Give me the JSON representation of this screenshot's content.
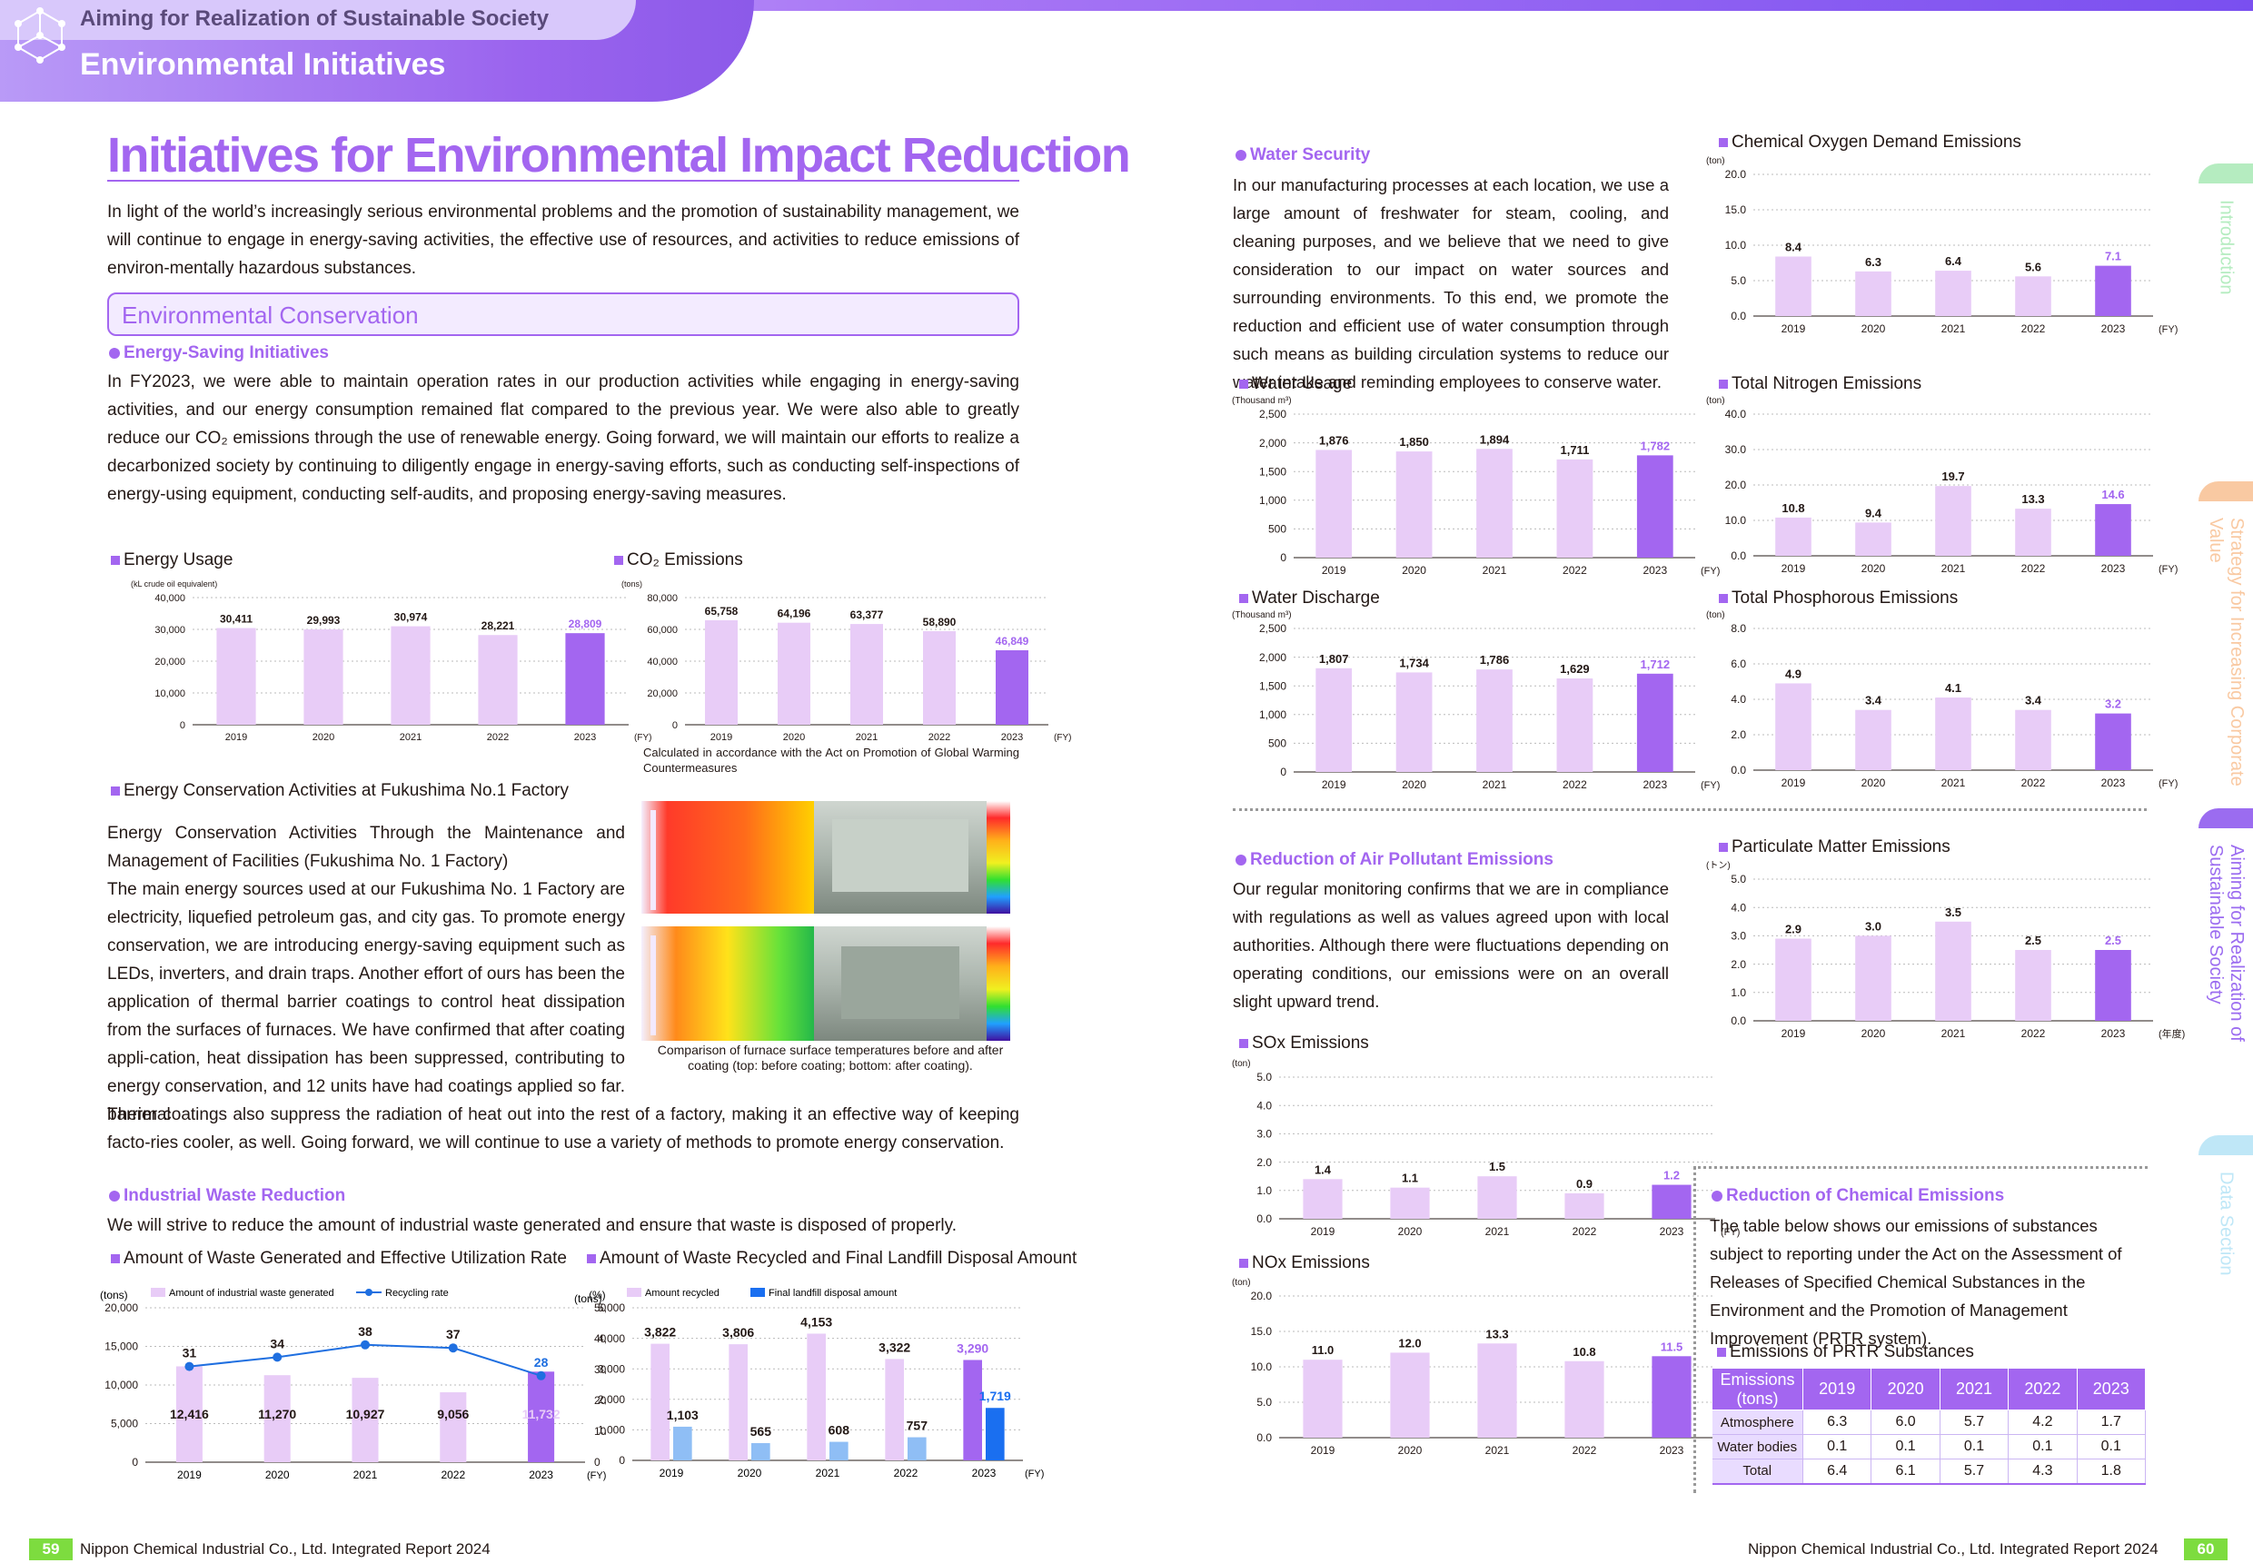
{
  "header": {
    "subtitle": "Aiming for Realization of Sustainable Society",
    "title": "Environmental Initiatives"
  },
  "side_tabs": [
    {
      "label": "Introduction",
      "color": "#b5ecc0"
    },
    {
      "label": "Strategy for Increasing Corporate Value",
      "color": "#f9c9a2"
    },
    {
      "label": "Aiming for Realization of Sustainable Society",
      "color": "#9b6cf0"
    },
    {
      "label": "Data Section",
      "color": "#bfe7f7"
    }
  ],
  "main": {
    "title": "Initiatives for Environmental Impact Reduction",
    "intro": "In light of the world’s increasingly serious environmental problems and the promotion of sustainability management, we will continue to engage in energy-saving activities, the effective use of resources, and activities to reduce emissions of environ-mentally hazardous substances.",
    "section_title": "Environmental Conservation",
    "energy_saving": {
      "heading": "Energy-Saving Initiatives",
      "body": "In FY2023, we were able to maintain operation rates in our production activities while engaging in energy-saving activities, and our energy consumption remained flat compared to the previous year. We were also able to greatly reduce our CO₂ emissions through the use of renewable energy. Going forward, we will maintain our efforts to realize a decarbonized society by continuing to diligently engage in energy-saving efforts, such as conducting self-inspections of energy-using equipment, conducting self-audits, and proposing energy-saving measures."
    },
    "fukushima": {
      "heading": "Energy Conservation Activities at Fukushima No.1 Factory",
      "subheading": "Energy Conservation Activities Through the Maintenance and Management of Facilities (Fukushima No. 1 Factory)",
      "body_narrow": "The main energy sources used at our Fukushima No. 1 Factory are electricity, liquefied petroleum gas, and city gas. To promote energy conservation, we are introducing energy-saving equipment such as LEDs, inverters, and drain traps. Another effort of ours has been the application of thermal barrier coatings to control heat dissipation from the surfaces of furnaces. We have confirmed that after coating appli-cation, heat dissipation has been suppressed, contributing to energy conservation, and 12 units have had coatings applied so far. Thermal",
      "body_wide": "barrier coatings also suppress the radiation of heat out into the rest of a factory, making it an effective way of keeping facto-ries cooler, as well. Going forward, we will continue to use a variety of methods to promote energy conservation.",
      "photo_caption": "Comparison of furnace surface temperatures before and after coating (top: before coating; bottom: after coating)."
    },
    "waste": {
      "heading": "Industrial Waste Reduction",
      "body": "We will strive to reduce the amount of industrial waste generated and ensure that waste is disposed of properly."
    },
    "co2_note": "Calculated in accordance with the Act on Promotion of Global Warming Countermeasures"
  },
  "right": {
    "water": {
      "heading": "Water Security",
      "body": "In our manufacturing processes at each location, we use a large amount of freshwater for steam, cooling, and cleaning purposes, and we believe that we need to give consideration to our impact on water sources and surrounding environments. To this end, we promote the reduction and efficient use of water consumption through such means as building circulation systems to reduce our water intake and reminding employees to conserve water."
    },
    "air": {
      "heading": "Reduction of Air Pollutant Emissions",
      "body": "Our regular monitoring confirms that we are in compliance with regulations as well as values agreed upon with local authorities. Although there were fluctuations depending on operating conditions, our emissions were on an overall slight upward trend."
    },
    "chemical": {
      "heading": "Reduction of Chemical Emissions",
      "body": "The table below shows our emissions of substances subject to reporting under the Act on the Assessment of Releases of Specified Chemical Substances in the Environment and the Promotion of Management Improvement (PRTR system)."
    },
    "prtr": {
      "title": "Emissions of PRTR Substances",
      "header": [
        "Emissions (tons)",
        "2019",
        "2020",
        "2021",
        "2022",
        "2023"
      ],
      "rows": [
        [
          "Atmosphere",
          "6.3",
          "6.0",
          "5.7",
          "4.2",
          "1.7"
        ],
        [
          "Water bodies",
          "0.1",
          "0.1",
          "0.1",
          "0.1",
          "0.1"
        ],
        [
          "Total",
          "6.4",
          "6.1",
          "5.7",
          "4.3",
          "1.8"
        ]
      ]
    }
  },
  "footer": {
    "left_page": "59",
    "right_page": "60",
    "left_text": "Nippon Chemical Industrial Co., Ltd.  Integrated Report 2024",
    "right_text": "Nippon Chemical Industrial Co., Ltd.  Integrated Report 2024"
  },
  "colors": {
    "accent": "#a366f0",
    "bar_light": "#e8ccf7",
    "bar_dark": "#a366f0",
    "line": "#1f6fe0",
    "bar_blue_light": "#8fbef5",
    "bar_blue": "#1a6ff0"
  },
  "chart_data": [
    {
      "id": "energy",
      "type": "bar",
      "title": "Energy Usage",
      "unit": "(kL crude oil equivalent)",
      "categories": [
        "2019",
        "2020",
        "2021",
        "2022",
        "2023"
      ],
      "values": [
        30411,
        29993,
        30974,
        28221,
        28809
      ],
      "labels": [
        "30,411",
        "29,993",
        "30,974",
        "28,221",
        "28,809"
      ],
      "ylim": [
        0,
        40000
      ],
      "yticks": [
        "0",
        "10,000",
        "20,000",
        "30,000",
        "40,000"
      ],
      "xsuffix": "(FY)"
    },
    {
      "id": "co2",
      "type": "bar",
      "title": "CO₂ Emissions",
      "unit": "(tons)",
      "categories": [
        "2019",
        "2020",
        "2021",
        "2022",
        "2023"
      ],
      "values": [
        65758,
        64196,
        63377,
        58890,
        46849
      ],
      "labels": [
        "65,758",
        "64,196",
        "63,377",
        "58,890",
        "46,849"
      ],
      "ylim": [
        0,
        80000
      ],
      "yticks": [
        "0",
        "20,000",
        "40,000",
        "60,000",
        "80,000"
      ],
      "xsuffix": "(FY)"
    },
    {
      "id": "water_usage",
      "type": "bar",
      "title": "Water Usage",
      "unit": "(Thousand m³)",
      "categories": [
        "2019",
        "2020",
        "2021",
        "2022",
        "2023"
      ],
      "values": [
        1876,
        1850,
        1894,
        1711,
        1782
      ],
      "labels": [
        "1,876",
        "1,850",
        "1,894",
        "1,711",
        "1,782"
      ],
      "ylim": [
        0,
        2500
      ],
      "yticks": [
        "0",
        "500",
        "1,000",
        "1,500",
        "2,000",
        "2,500"
      ],
      "xsuffix": "(FY)"
    },
    {
      "id": "water_discharge",
      "type": "bar",
      "title": "Water Discharge",
      "unit": "(Thousand m³)",
      "categories": [
        "2019",
        "2020",
        "2021",
        "2022",
        "2023"
      ],
      "values": [
        1807,
        1734,
        1786,
        1629,
        1712
      ],
      "labels": [
        "1,807",
        "1,734",
        "1,786",
        "1,629",
        "1,712"
      ],
      "ylim": [
        0,
        2500
      ],
      "yticks": [
        "0",
        "500",
        "1,000",
        "1,500",
        "2,000",
        "2,500"
      ],
      "xsuffix": "(FY)"
    },
    {
      "id": "cod",
      "type": "bar",
      "title": "Chemical Oxygen Demand Emissions",
      "unit": "(ton)",
      "categories": [
        "2019",
        "2020",
        "2021",
        "2022",
        "2023"
      ],
      "values": [
        8.4,
        6.3,
        6.4,
        5.6,
        7.1
      ],
      "labels": [
        "8.4",
        "6.3",
        "6.4",
        "5.6",
        "7.1"
      ],
      "ylim": [
        0,
        20
      ],
      "yticks": [
        "0.0",
        "5.0",
        "10.0",
        "15.0",
        "20.0"
      ],
      "xsuffix": "(FY)"
    },
    {
      "id": "nitrogen",
      "type": "bar",
      "title": "Total Nitrogen Emissions",
      "unit": "(ton)",
      "categories": [
        "2019",
        "2020",
        "2021",
        "2022",
        "2023"
      ],
      "values": [
        10.8,
        9.4,
        19.7,
        13.3,
        14.6
      ],
      "labels": [
        "10.8",
        "9.4",
        "19.7",
        "13.3",
        "14.6"
      ],
      "ylim": [
        0,
        40
      ],
      "yticks": [
        "0.0",
        "10.0",
        "20.0",
        "30.0",
        "40.0"
      ],
      "xsuffix": "(FY)"
    },
    {
      "id": "phosphorous",
      "type": "bar",
      "title": "Total Phosphorous Emissions",
      "unit": "(ton)",
      "categories": [
        "2019",
        "2020",
        "2021",
        "2022",
        "2023"
      ],
      "values": [
        4.9,
        3.4,
        4.1,
        3.4,
        3.2
      ],
      "labels": [
        "4.9",
        "3.4",
        "4.1",
        "3.4",
        "3.2"
      ],
      "ylim": [
        0,
        8
      ],
      "yticks": [
        "0.0",
        "2.0",
        "4.0",
        "6.0",
        "8.0"
      ],
      "xsuffix": "(FY)"
    },
    {
      "id": "sox",
      "type": "bar",
      "title": "SOx Emissions",
      "unit": "(ton)",
      "categories": [
        "2019",
        "2020",
        "2021",
        "2022",
        "2023"
      ],
      "values": [
        1.4,
        1.1,
        1.5,
        0.9,
        1.2
      ],
      "labels": [
        "1.4",
        "1.1",
        "1.5",
        "0.9",
        "1.2"
      ],
      "ylim": [
        0,
        5
      ],
      "yticks": [
        "0.0",
        "1.0",
        "2.0",
        "3.0",
        "4.0",
        "5.0"
      ],
      "xsuffix": "(FY)"
    },
    {
      "id": "nox",
      "type": "bar",
      "title": "NOx Emissions",
      "unit": "(ton)",
      "categories": [
        "2019",
        "2020",
        "2021",
        "2022",
        "2023"
      ],
      "values": [
        11.0,
        12.0,
        13.3,
        10.8,
        11.5
      ],
      "labels": [
        "11.0",
        "12.0",
        "13.3",
        "10.8",
        "11.5"
      ],
      "ylim": [
        0,
        20
      ],
      "yticks": [
        "0.0",
        "5.0",
        "10.0",
        "15.0",
        "20.0"
      ],
      "xsuffix": "(FY)"
    },
    {
      "id": "pm",
      "type": "bar",
      "title": "Particulate Matter Emissions",
      "unit": "(トン)",
      "categories": [
        "2019",
        "2020",
        "2021",
        "2022",
        "2023"
      ],
      "values": [
        2.9,
        3.0,
        3.5,
        2.5,
        2.5
      ],
      "labels": [
        "2.9",
        "3.0",
        "3.5",
        "2.5",
        "2.5"
      ],
      "ylim": [
        0,
        5
      ],
      "yticks": [
        "0.0",
        "1.0",
        "2.0",
        "3.0",
        "4.0",
        "5.0"
      ],
      "xsuffix": "(年度)"
    },
    {
      "id": "waste_gen",
      "type": "bar+line",
      "title": "Amount of Waste Generated and Effective Utilization Rate",
      "unit": "(tons)",
      "unit_right": "(%)",
      "legend": [
        "Amount of industrial waste generated",
        "Recycling rate"
      ],
      "categories": [
        "2019",
        "2020",
        "2021",
        "2022",
        "2023"
      ],
      "values": [
        12416,
        11270,
        10927,
        9056,
        11732
      ],
      "labels": [
        "12,416",
        "11,270",
        "10,927",
        "9,056",
        "11,732"
      ],
      "rate": [
        31,
        34,
        38,
        37,
        28
      ],
      "ylim": [
        0,
        20000
      ],
      "ylim_right": [
        0,
        50
      ],
      "yticks": [
        "0",
        "5,000",
        "10,000",
        "15,000",
        "20,000"
      ],
      "yticks_right": [
        "0",
        "10",
        "20",
        "30",
        "40",
        "50"
      ],
      "xsuffix": "(FY)"
    },
    {
      "id": "waste_recycled",
      "type": "grouped-bar",
      "title": "Amount of Waste Recycled and Final Landfill Disposal Amount",
      "unit": "(tons)",
      "legend": [
        "Amount recycled",
        "Final landfill disposal amount"
      ],
      "categories": [
        "2019",
        "2020",
        "2021",
        "2022",
        "2023"
      ],
      "series": [
        {
          "name": "Amount recycled",
          "values": [
            3822,
            3806,
            4153,
            3322,
            3290
          ],
          "labels": [
            "3,822",
            "3,806",
            "4,153",
            "3,322",
            "3,290"
          ]
        },
        {
          "name": "Final landfill disposal amount",
          "values": [
            1103,
            565,
            608,
            757,
            1719
          ],
          "labels": [
            "1,103",
            "565",
            "608",
            "757",
            "1,719"
          ]
        }
      ],
      "ylim": [
        0,
        5000
      ],
      "yticks": [
        "0",
        "1,000",
        "2,000",
        "3,000",
        "4,000",
        "5,000"
      ],
      "xsuffix": "(FY)"
    }
  ]
}
